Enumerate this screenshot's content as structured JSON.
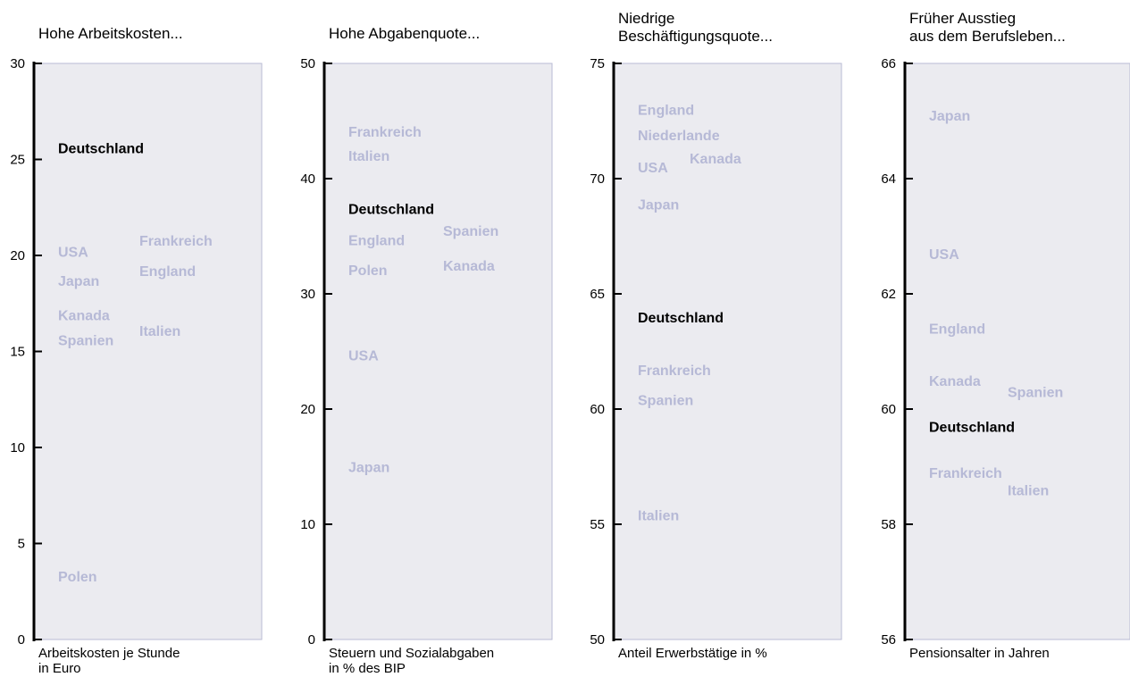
{
  "colors": {
    "panel_fill": "#ebebf0",
    "panel_border": "#b8bbd4",
    "country_muted": "#b6b9d6",
    "highlight": "#000000",
    "axis": "#000000"
  },
  "chart_data": [
    {
      "type": "scatter",
      "title": [
        "Hohe Arbeitskosten..."
      ],
      "xlabel": "",
      "ylabel": [
        "Arbeitskosten je Stunde",
        "in Euro"
      ],
      "ylim": [
        0,
        30
      ],
      "yticks": [
        0,
        5,
        10,
        15,
        20,
        25,
        30
      ],
      "highlight": "Deutschland",
      "grid": false,
      "points": [
        {
          "label": "Deutschland",
          "col": 0,
          "value": 25.6
        },
        {
          "label": "USA",
          "col": 0,
          "value": 20.2
        },
        {
          "label": "Frankreich",
          "col": 1,
          "value": 20.8
        },
        {
          "label": "England",
          "col": 1,
          "value": 19.2
        },
        {
          "label": "Japan",
          "col": 0,
          "value": 18.7
        },
        {
          "label": "Kanada",
          "col": 0,
          "value": 16.9
        },
        {
          "label": "Italien",
          "col": 1,
          "value": 16.1
        },
        {
          "label": "Spanien",
          "col": 0,
          "value": 15.6
        },
        {
          "label": "Polen",
          "col": 0,
          "value": 3.3
        }
      ]
    },
    {
      "type": "scatter",
      "title": [
        "Hohe Abgabenquote..."
      ],
      "xlabel": "",
      "ylabel": [
        "Steuern und Sozialabgaben",
        "in % des BIP"
      ],
      "ylim": [
        0,
        50
      ],
      "yticks": [
        0,
        10,
        20,
        30,
        40,
        50
      ],
      "highlight": "Deutschland",
      "grid": false,
      "points": [
        {
          "label": "Frankreich",
          "col": 0,
          "value": 44.1
        },
        {
          "label": "Italien",
          "col": 0,
          "value": 42.0
        },
        {
          "label": "Deutschland",
          "col": 0,
          "value": 37.4
        },
        {
          "label": "Spanien",
          "col": 1,
          "value": 35.5
        },
        {
          "label": "England",
          "col": 0,
          "value": 34.7
        },
        {
          "label": "Kanada",
          "col": 1,
          "value": 32.5
        },
        {
          "label": "Polen",
          "col": 0,
          "value": 32.1
        },
        {
          "label": "USA",
          "col": 0,
          "value": 24.7
        },
        {
          "label": "Japan",
          "col": 0,
          "value": 15.0
        }
      ]
    },
    {
      "type": "scatter",
      "title": [
        "Niedrige",
        "Beschäftigungsquote..."
      ],
      "xlabel": "",
      "ylabel": [
        "Anteil Erwerbstätige in %"
      ],
      "ylim": [
        50,
        75
      ],
      "yticks": [
        50,
        55,
        60,
        65,
        70,
        75
      ],
      "highlight": "Deutschland",
      "grid": false,
      "points": [
        {
          "label": "England",
          "col": 0,
          "value": 73.0
        },
        {
          "label": "Niederlande",
          "col": 0,
          "value": 71.9
        },
        {
          "label": "Kanada",
          "col": 1,
          "value": 70.9
        },
        {
          "label": "USA",
          "col": 0,
          "value": 70.5
        },
        {
          "label": "Japan",
          "col": 0,
          "value": 68.9
        },
        {
          "label": "Deutschland",
          "col": 0,
          "value": 64.0
        },
        {
          "label": "Frankreich",
          "col": 0,
          "value": 61.7
        },
        {
          "label": "Spanien",
          "col": 0,
          "value": 60.4
        },
        {
          "label": "Italien",
          "col": 0,
          "value": 55.4
        }
      ]
    },
    {
      "type": "scatter",
      "title": [
        "Früher Ausstieg",
        "aus dem Berufsleben..."
      ],
      "xlabel": "",
      "ylabel": [
        "Pensionsalter in Jahren"
      ],
      "ylim": [
        56,
        66
      ],
      "yticks": [
        56,
        58,
        60,
        62,
        64,
        66
      ],
      "highlight": "Deutschland",
      "grid": false,
      "points": [
        {
          "label": "Japan",
          "col": 0,
          "value": 65.1
        },
        {
          "label": "USA",
          "col": 0,
          "value": 62.7
        },
        {
          "label": "England",
          "col": 0,
          "value": 61.4
        },
        {
          "label": "Kanada",
          "col": 0,
          "value": 60.5
        },
        {
          "label": "Spanien",
          "col": 1,
          "value": 60.3
        },
        {
          "label": "Deutschland",
          "col": 0,
          "value": 59.7
        },
        {
          "label": "Frankreich",
          "col": 0,
          "value": 58.9
        },
        {
          "label": "Italien",
          "col": 1,
          "value": 58.6
        }
      ]
    }
  ]
}
